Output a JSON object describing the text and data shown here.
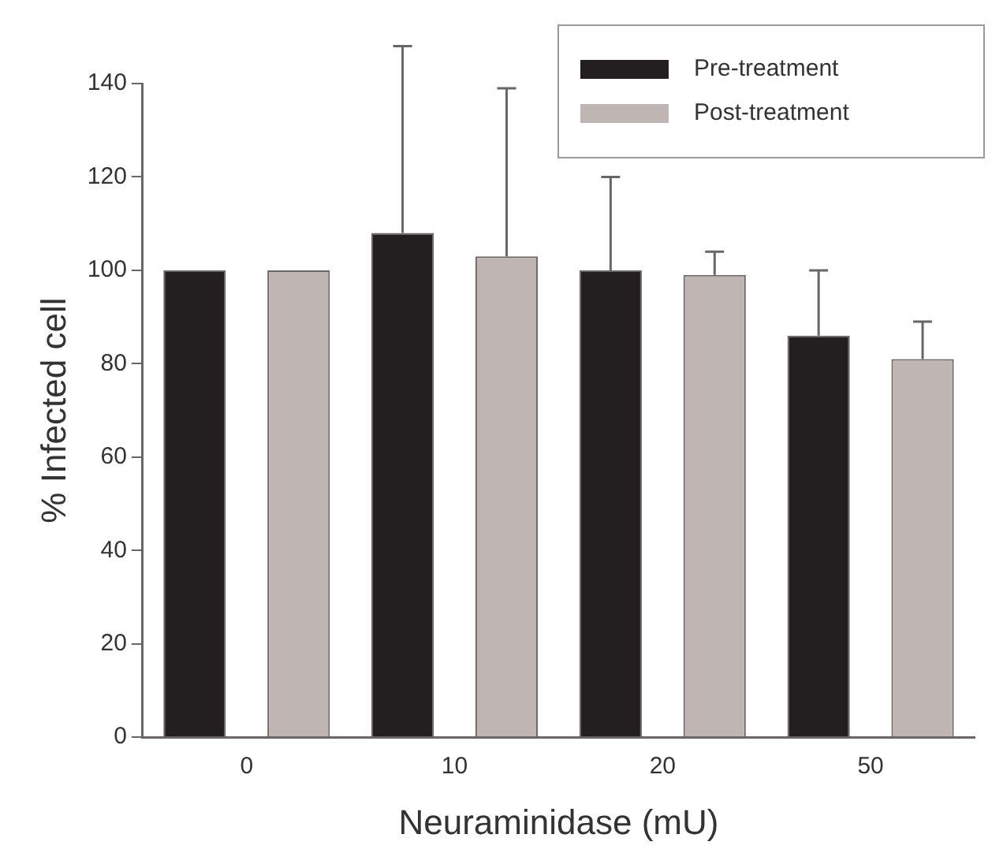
{
  "chart_data": {
    "type": "bar",
    "xlabel": "Neuraminidase (mU)",
    "ylabel": "% Infected cell",
    "categories": [
      "0",
      "10",
      "20",
      "50"
    ],
    "series": [
      {
        "name": "Pre-treatment",
        "color": "#231f20",
        "values": [
          100,
          108,
          100,
          86
        ],
        "errors": [
          null,
          [
            108,
            148
          ],
          [
            100,
            120
          ],
          [
            86,
            100
          ]
        ]
      },
      {
        "name": "Post-treatment",
        "color": "#bfb5b2",
        "values": [
          100,
          103,
          99,
          81
        ],
        "errors": [
          null,
          [
            103,
            139
          ],
          [
            99,
            104
          ],
          [
            81,
            89
          ]
        ]
      }
    ],
    "ylim": [
      0,
      140
    ],
    "yticks": [
      0,
      20,
      40,
      60,
      80,
      100,
      120,
      140
    ],
    "grid": false,
    "legend": "top right"
  }
}
